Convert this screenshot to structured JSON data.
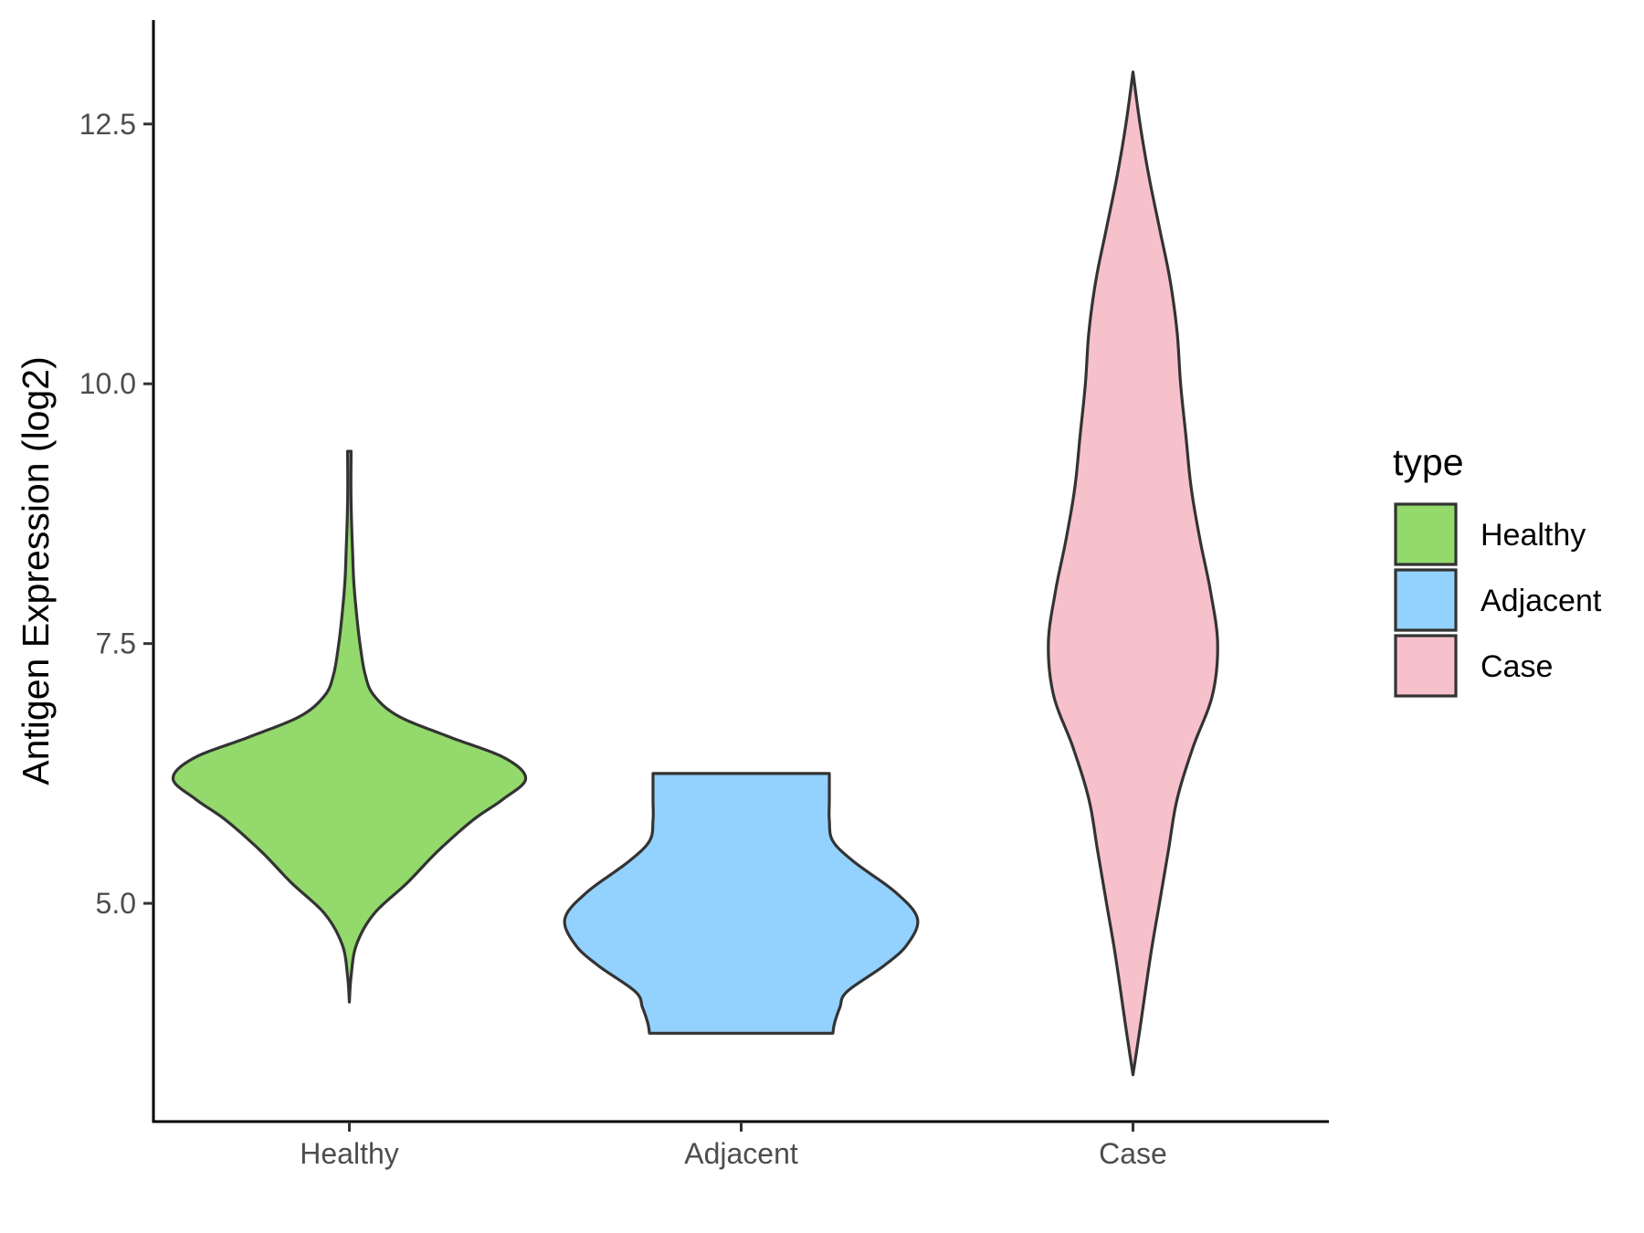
{
  "chart_data": {
    "type": "violin",
    "categories": [
      "Healthy",
      "Adjacent",
      "Case"
    ],
    "xlabel": "",
    "ylabel": "Antigen Expression (log2)",
    "ylim": [
      2.9,
      13.5
    ],
    "yticks": [
      {
        "value": 5.0,
        "label": "5.0"
      },
      {
        "value": 7.5,
        "label": "7.5"
      },
      {
        "value": 10.0,
        "label": "10.0"
      },
      {
        "value": 12.5,
        "label": "12.5"
      }
    ],
    "grid": false,
    "legend": {
      "title": "type",
      "position": "right",
      "entries": [
        {
          "label": "Healthy",
          "color": "#93d96b"
        },
        {
          "label": "Adjacent",
          "color": "#93d1fe"
        },
        {
          "label": "Case",
          "color": "#f7c1cc"
        }
      ]
    },
    "series": [
      {
        "category": "Healthy",
        "color": "#93d96b",
        "min": 4.05,
        "max": 9.35,
        "density_profile": [
          [
            4.05,
            0.0
          ],
          [
            4.3,
            0.01
          ],
          [
            4.6,
            0.04
          ],
          [
            4.9,
            0.14
          ],
          [
            5.2,
            0.33
          ],
          [
            5.5,
            0.5
          ],
          [
            5.8,
            0.7
          ],
          [
            6.0,
            0.87
          ],
          [
            6.2,
            1.0
          ],
          [
            6.4,
            0.88
          ],
          [
            6.6,
            0.57
          ],
          [
            6.8,
            0.28
          ],
          [
            7.0,
            0.14
          ],
          [
            7.2,
            0.09
          ],
          [
            7.5,
            0.06
          ],
          [
            7.8,
            0.04
          ],
          [
            8.1,
            0.025
          ],
          [
            8.4,
            0.018
          ],
          [
            8.7,
            0.012
          ],
          [
            9.0,
            0.009
          ],
          [
            9.35,
            0.01
          ]
        ]
      },
      {
        "category": "Adjacent",
        "color": "#93d1fe",
        "min": 3.75,
        "max": 6.25,
        "density_profile": [
          [
            3.75,
            0.52
          ],
          [
            3.85,
            0.53
          ],
          [
            4.0,
            0.56
          ],
          [
            4.15,
            0.6
          ],
          [
            4.4,
            0.81
          ],
          [
            4.6,
            0.94
          ],
          [
            4.85,
            1.0
          ],
          [
            5.1,
            0.88
          ],
          [
            5.4,
            0.64
          ],
          [
            5.6,
            0.52
          ],
          [
            5.8,
            0.5
          ],
          [
            6.0,
            0.5
          ],
          [
            6.25,
            0.5
          ]
        ]
      },
      {
        "category": "Case",
        "color": "#f7c1cc",
        "min": 3.35,
        "max": 13.0,
        "density_profile": [
          [
            3.35,
            0.0
          ],
          [
            3.8,
            0.04
          ],
          [
            4.5,
            0.1
          ],
          [
            5.0,
            0.15
          ],
          [
            5.5,
            0.2
          ],
          [
            6.0,
            0.25
          ],
          [
            6.5,
            0.34
          ],
          [
            7.0,
            0.45
          ],
          [
            7.5,
            0.48
          ],
          [
            8.0,
            0.44
          ],
          [
            8.5,
            0.38
          ],
          [
            9.0,
            0.33
          ],
          [
            9.5,
            0.3
          ],
          [
            10.0,
            0.27
          ],
          [
            10.5,
            0.25
          ],
          [
            11.0,
            0.21
          ],
          [
            11.5,
            0.15
          ],
          [
            12.0,
            0.09
          ],
          [
            12.5,
            0.04
          ],
          [
            13.0,
            0.0
          ]
        ]
      }
    ]
  }
}
